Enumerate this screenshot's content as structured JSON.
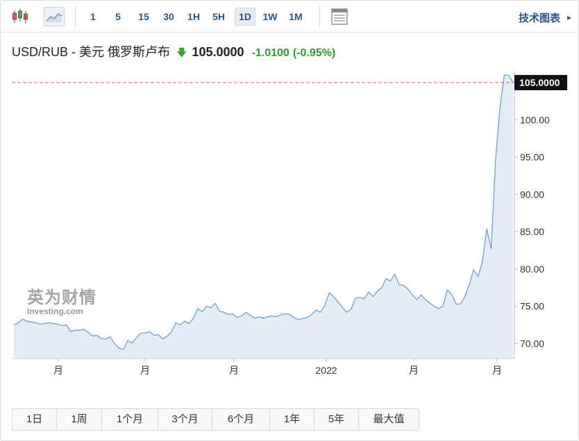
{
  "toolbar": {
    "chart_type_icons": [
      "candlestick-icon",
      "area-chart-icon"
    ],
    "timeframes": [
      "1",
      "5",
      "15",
      "30",
      "1H",
      "5H",
      "1D",
      "1W",
      "1M"
    ],
    "active_timeframe": "1D",
    "table_icon": "table-view-icon",
    "technical_chart_link": "技术图表"
  },
  "quote": {
    "name": "USD/RUB - 美元 俄罗斯卢布",
    "price": "105.0000",
    "change": "-1.0100",
    "change_pct": "(-0.95%)",
    "direction": "down"
  },
  "watermark": {
    "cn": "英为财情",
    "en": "Investing.com"
  },
  "chart_data": {
    "type": "area",
    "title": "",
    "xlabel": "",
    "ylabel": "",
    "ylim": [
      68,
      106.5
    ],
    "y_ticks": [
      "70.00",
      "75.00",
      "80.00",
      "85.00",
      "90.00",
      "95.00",
      "100.00"
    ],
    "x_tick_labels": [
      "月",
      "月",
      "月",
      "2022",
      "月",
      "月"
    ],
    "last_value_label": "105.0000",
    "reference_line": 105.0,
    "grid": false,
    "series": [
      {
        "values": [
          72.5,
          72.8,
          73.3,
          73.0,
          72.9,
          72.8,
          72.6,
          72.7,
          72.8,
          72.7,
          72.6,
          72.4,
          72.5,
          71.6,
          71.8,
          71.8,
          71.9,
          71.5,
          71.0,
          71.1,
          70.7,
          70.6,
          70.9,
          70.0,
          69.4,
          69.2,
          70.4,
          70.1,
          70.8,
          71.4,
          71.4,
          71.6,
          71.1,
          71.2,
          70.6,
          71.0,
          71.6,
          72.8,
          72.5,
          73.0,
          72.7,
          73.4,
          74.7,
          74.3,
          75.0,
          74.8,
          75.4,
          74.3,
          74.2,
          73.9,
          74.0,
          73.5,
          73.7,
          74.2,
          73.8,
          73.4,
          73.6,
          73.4,
          73.6,
          73.7,
          73.6,
          73.9,
          74.0,
          73.9,
          73.5,
          73.2,
          73.4,
          73.5,
          73.9,
          74.5,
          74.2,
          75.1,
          76.8,
          76.3,
          75.6,
          74.9,
          74.2,
          74.6,
          76.1,
          76.2,
          76.0,
          76.9,
          76.3,
          77.0,
          77.5,
          78.7,
          78.4,
          79.3,
          77.9,
          77.8,
          77.3,
          76.6,
          75.9,
          76.5,
          75.9,
          75.4,
          75.0,
          74.7,
          75.0,
          77.2,
          76.6,
          75.3,
          75.3,
          76.3,
          77.9,
          79.9,
          79.0,
          81.0,
          85.4,
          82.7,
          94.6,
          101.6,
          106.0,
          106.0,
          105.0
        ]
      }
    ]
  },
  "ranges": [
    "1日",
    "1周",
    "1个月",
    "3个月",
    "6个月",
    "1年",
    "5年",
    "最大值"
  ],
  "colors": {
    "link": "#2a5391",
    "up_down_green": "#2e9e2e",
    "line": "#6f9fd0",
    "fill": "#e4ecf6",
    "ref_line": "#c9686a",
    "last_label_bg": "#111111"
  }
}
